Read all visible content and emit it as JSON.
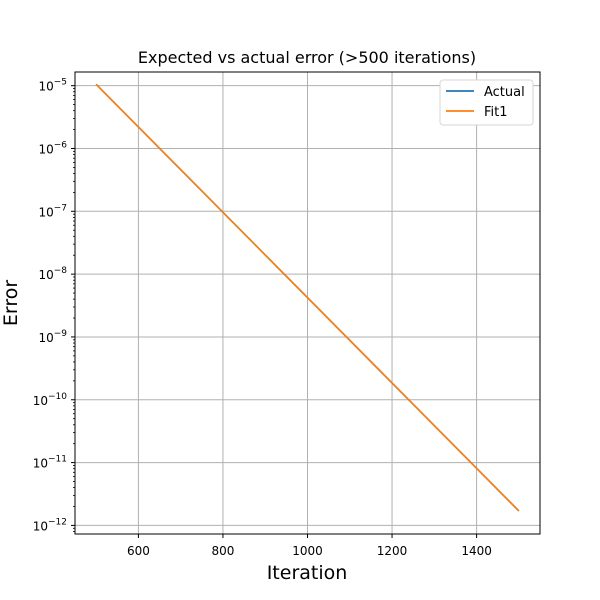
{
  "chart_data": {
    "type": "line",
    "title": "Expected vs actual error (>500 iterations)",
    "xlabel": "Iteration",
    "ylabel": "Error",
    "yscale": "log",
    "xlim": [
      450,
      1550
    ],
    "ylim": [
      7.3e-13,
      1.65e-05
    ],
    "xticks": [
      600,
      800,
      1000,
      1200,
      1400
    ],
    "yticks": [
      1e-05,
      1e-06,
      1e-07,
      1e-08,
      1e-09,
      1e-10,
      1e-11,
      1e-12
    ],
    "ytick_labels": [
      {
        "base": "10",
        "exp": "−5"
      },
      {
        "base": "10",
        "exp": "−6"
      },
      {
        "base": "10",
        "exp": "−7"
      },
      {
        "base": "10",
        "exp": "−8"
      },
      {
        "base": "10",
        "exp": "−9"
      },
      {
        "base": "10",
        "exp": "−10"
      },
      {
        "base": "10",
        "exp": "−11"
      },
      {
        "base": "10",
        "exp": "−12"
      }
    ],
    "grid": true,
    "legend_position": "top-right",
    "series": [
      {
        "name": "Actual",
        "color": "#1f77b4",
        "x": [
          500,
          1500
        ],
        "y": [
          1.05e-05,
          1.7e-12
        ]
      },
      {
        "name": "Fit1",
        "color": "#ff7f0e",
        "x": [
          500,
          1500
        ],
        "y": [
          1.05e-05,
          1.7e-12
        ]
      }
    ]
  }
}
